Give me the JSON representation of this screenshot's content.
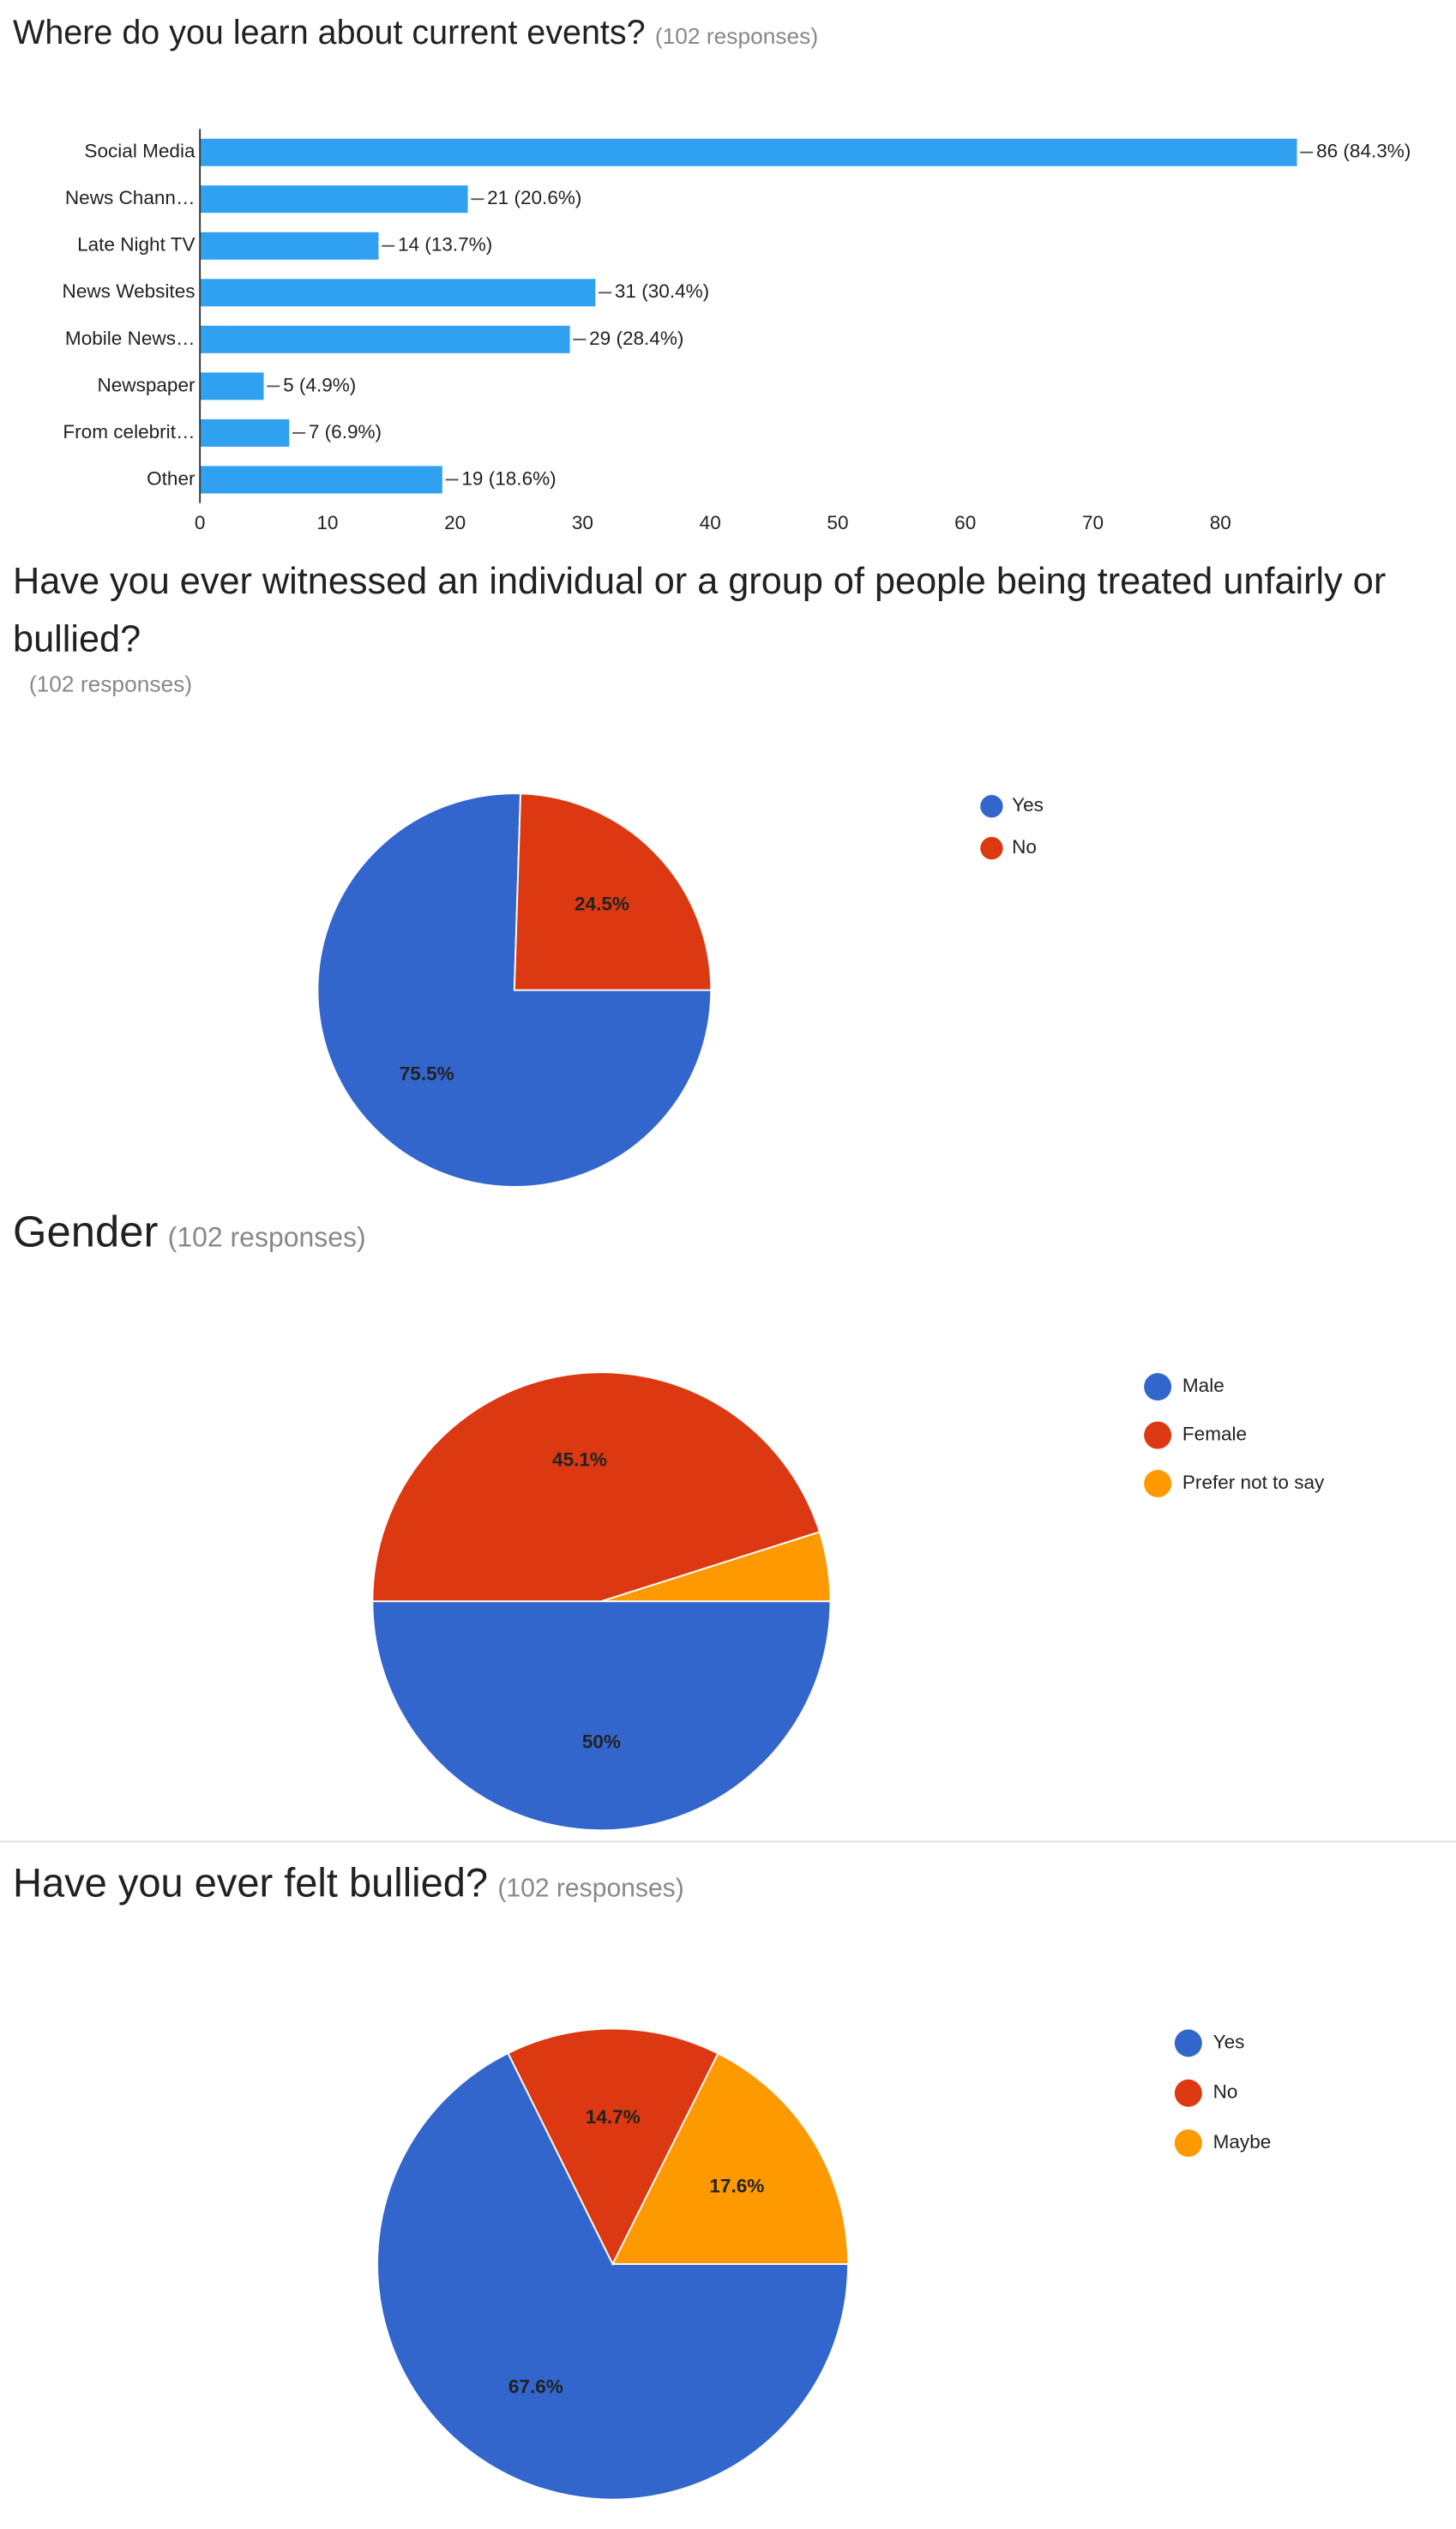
{
  "chart_data": [
    {
      "type": "bar",
      "orientation": "horizontal",
      "title": "Where do you learn about current events?",
      "subtitle": "(102 responses)",
      "categories": [
        "Social Media",
        "News Chann…",
        "Late Night TV",
        "News Websites",
        "Mobile News…",
        "Newspaper",
        "From celebrit…",
        "Other"
      ],
      "values": [
        86,
        21,
        14,
        31,
        29,
        5,
        7,
        19
      ],
      "value_labels": [
        "86 (84.3%)",
        "21 (20.6%)",
        "14 (13.7%)",
        "31 (30.4%)",
        "29 (28.4%)",
        "5 (4.9%)",
        "7 (6.9%)",
        "19 (18.6%)"
      ],
      "color": "#30a0f0",
      "xlim": [
        0,
        90
      ],
      "xticks": [
        0,
        10,
        20,
        30,
        40,
        50,
        60,
        70,
        80
      ],
      "grid": false
    },
    {
      "type": "pie",
      "title": "Have you ever witnessed an individual or a group of people being treated unfairly or bullied?",
      "subtitle": "(102 responses)",
      "categories": [
        "Yes",
        "No"
      ],
      "values": [
        75.5,
        24.5
      ],
      "value_labels": [
        "75.5%",
        "24.5%"
      ],
      "colors": [
        "#3366cc",
        "#dc3912"
      ],
      "legend": "right"
    },
    {
      "type": "pie",
      "title": "Gender",
      "subtitle": "(102 responses)",
      "categories": [
        "Male",
        "Female",
        "Prefer not to say"
      ],
      "values": [
        50,
        45.1,
        4.9
      ],
      "value_labels": [
        "50%",
        "45.1%",
        null
      ],
      "colors": [
        "#3366cc",
        "#dc3912",
        "#ff9900"
      ],
      "legend": "right"
    },
    {
      "type": "pie",
      "title": "Have you ever felt bullied?",
      "subtitle": "(102 responses)",
      "categories": [
        "Yes",
        "No",
        "Maybe"
      ],
      "values": [
        67.6,
        14.7,
        17.6
      ],
      "value_labels": [
        "67.6%",
        "14.7%",
        "17.6%"
      ],
      "colors": [
        "#3366cc",
        "#dc3912",
        "#ff9900"
      ],
      "legend": "right"
    }
  ]
}
